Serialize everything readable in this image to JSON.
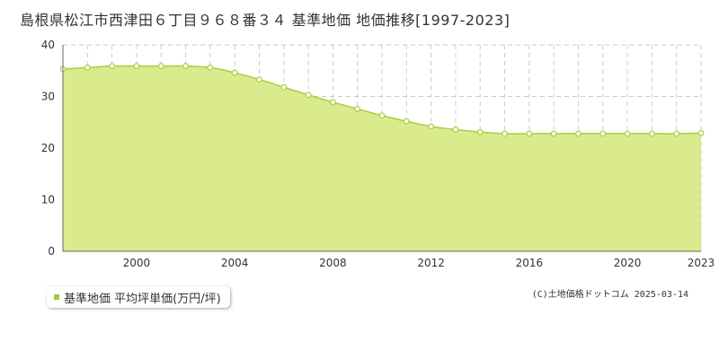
{
  "chart_data": {
    "type": "area",
    "title": "島根県松江市西津田６丁目９６８番３４ 基準地価 地価推移[1997-2023]",
    "ylim": [
      0,
      40
    ],
    "xlim": [
      1997,
      2023
    ],
    "y_ticks": [
      0,
      10,
      20,
      30,
      40
    ],
    "x_tick_labels": [
      "2000",
      "2004",
      "2008",
      "2012",
      "2016",
      "2020",
      "2023"
    ],
    "grid": true,
    "legend_position": "bottom-left",
    "series": [
      {
        "name": "基準地価 平均坪単価(万円/坪)",
        "x": [
          1997,
          1998,
          1999,
          2000,
          2001,
          2002,
          2003,
          2004,
          2005,
          2006,
          2007,
          2008,
          2009,
          2010,
          2011,
          2012,
          2013,
          2014,
          2015,
          2016,
          2017,
          2018,
          2019,
          2020,
          2021,
          2022,
          2023
        ],
        "values": [
          35.3,
          35.6,
          35.9,
          35.9,
          35.9,
          35.9,
          35.6,
          34.6,
          33.3,
          31.8,
          30.3,
          28.9,
          27.6,
          26.3,
          25.2,
          24.2,
          23.6,
          23.1,
          22.8,
          22.8,
          22.8,
          22.8,
          22.8,
          22.8,
          22.8,
          22.8,
          22.9
        ]
      }
    ],
    "colors": {
      "fill": "#d9eb8d",
      "line": "#a8cf3c",
      "marker_fill": "#ffffff",
      "legend_swatch": "#9acd32",
      "grid": "#cccccc",
      "axis": "#666666"
    }
  },
  "copyright": "(C)土地価格ドットコム 2025-03-14"
}
